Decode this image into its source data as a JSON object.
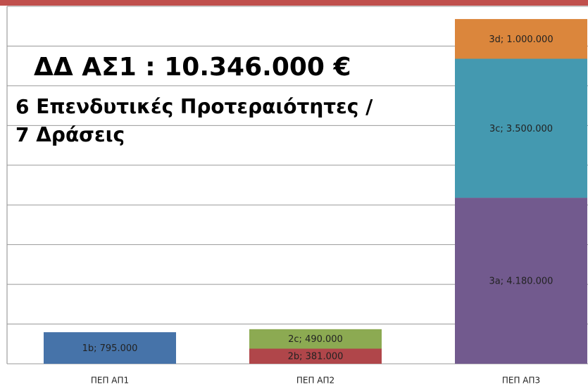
{
  "chart_data": {
    "type": "stacked_bar",
    "annotations": [
      "ΔΔ ΑΣ1 : 10.346.000 €",
      "6 Επενδυτικές Προτεραιότητες /",
      "7 Δράσεις"
    ],
    "categories": [
      "ΠΕΠ ΑΠ1",
      "ΠΕΠ ΑΠ2",
      "ΠΕΠ ΑΠ3"
    ],
    "series": [
      {
        "name": "1b",
        "color": "#4673a9",
        "values": [
          795000,
          null,
          null
        ],
        "value_labels": [
          "1b; 795.000",
          null,
          null
        ]
      },
      {
        "name": "2b",
        "color": "#b0464a",
        "values": [
          null,
          381000,
          null
        ],
        "value_labels": [
          null,
          "2b; 381.000",
          null
        ]
      },
      {
        "name": "2c",
        "color": "#8caa52",
        "values": [
          null,
          490000,
          null
        ],
        "value_labels": [
          null,
          "2c; 490.000",
          null
        ]
      },
      {
        "name": "3a",
        "color": "#725a8e",
        "values": [
          null,
          null,
          4180000
        ],
        "value_labels": [
          null,
          null,
          "3a; 4.180.000"
        ]
      },
      {
        "name": "3c",
        "color": "#4499b0",
        "values": [
          null,
          null,
          3500000
        ],
        "value_labels": [
          null,
          null,
          "3c; 3.500.000"
        ]
      },
      {
        "name": "3d",
        "color": "#db863c",
        "values": [
          null,
          null,
          1000000
        ],
        "value_labels": [
          null,
          null,
          "3d; 1.000.000"
        ]
      }
    ],
    "ylim": [
      0,
      9000000
    ],
    "yticks": [
      0,
      1000000,
      2000000,
      3000000,
      4000000,
      5000000,
      6000000,
      7000000,
      8000000,
      9000000
    ],
    "grid": true
  }
}
